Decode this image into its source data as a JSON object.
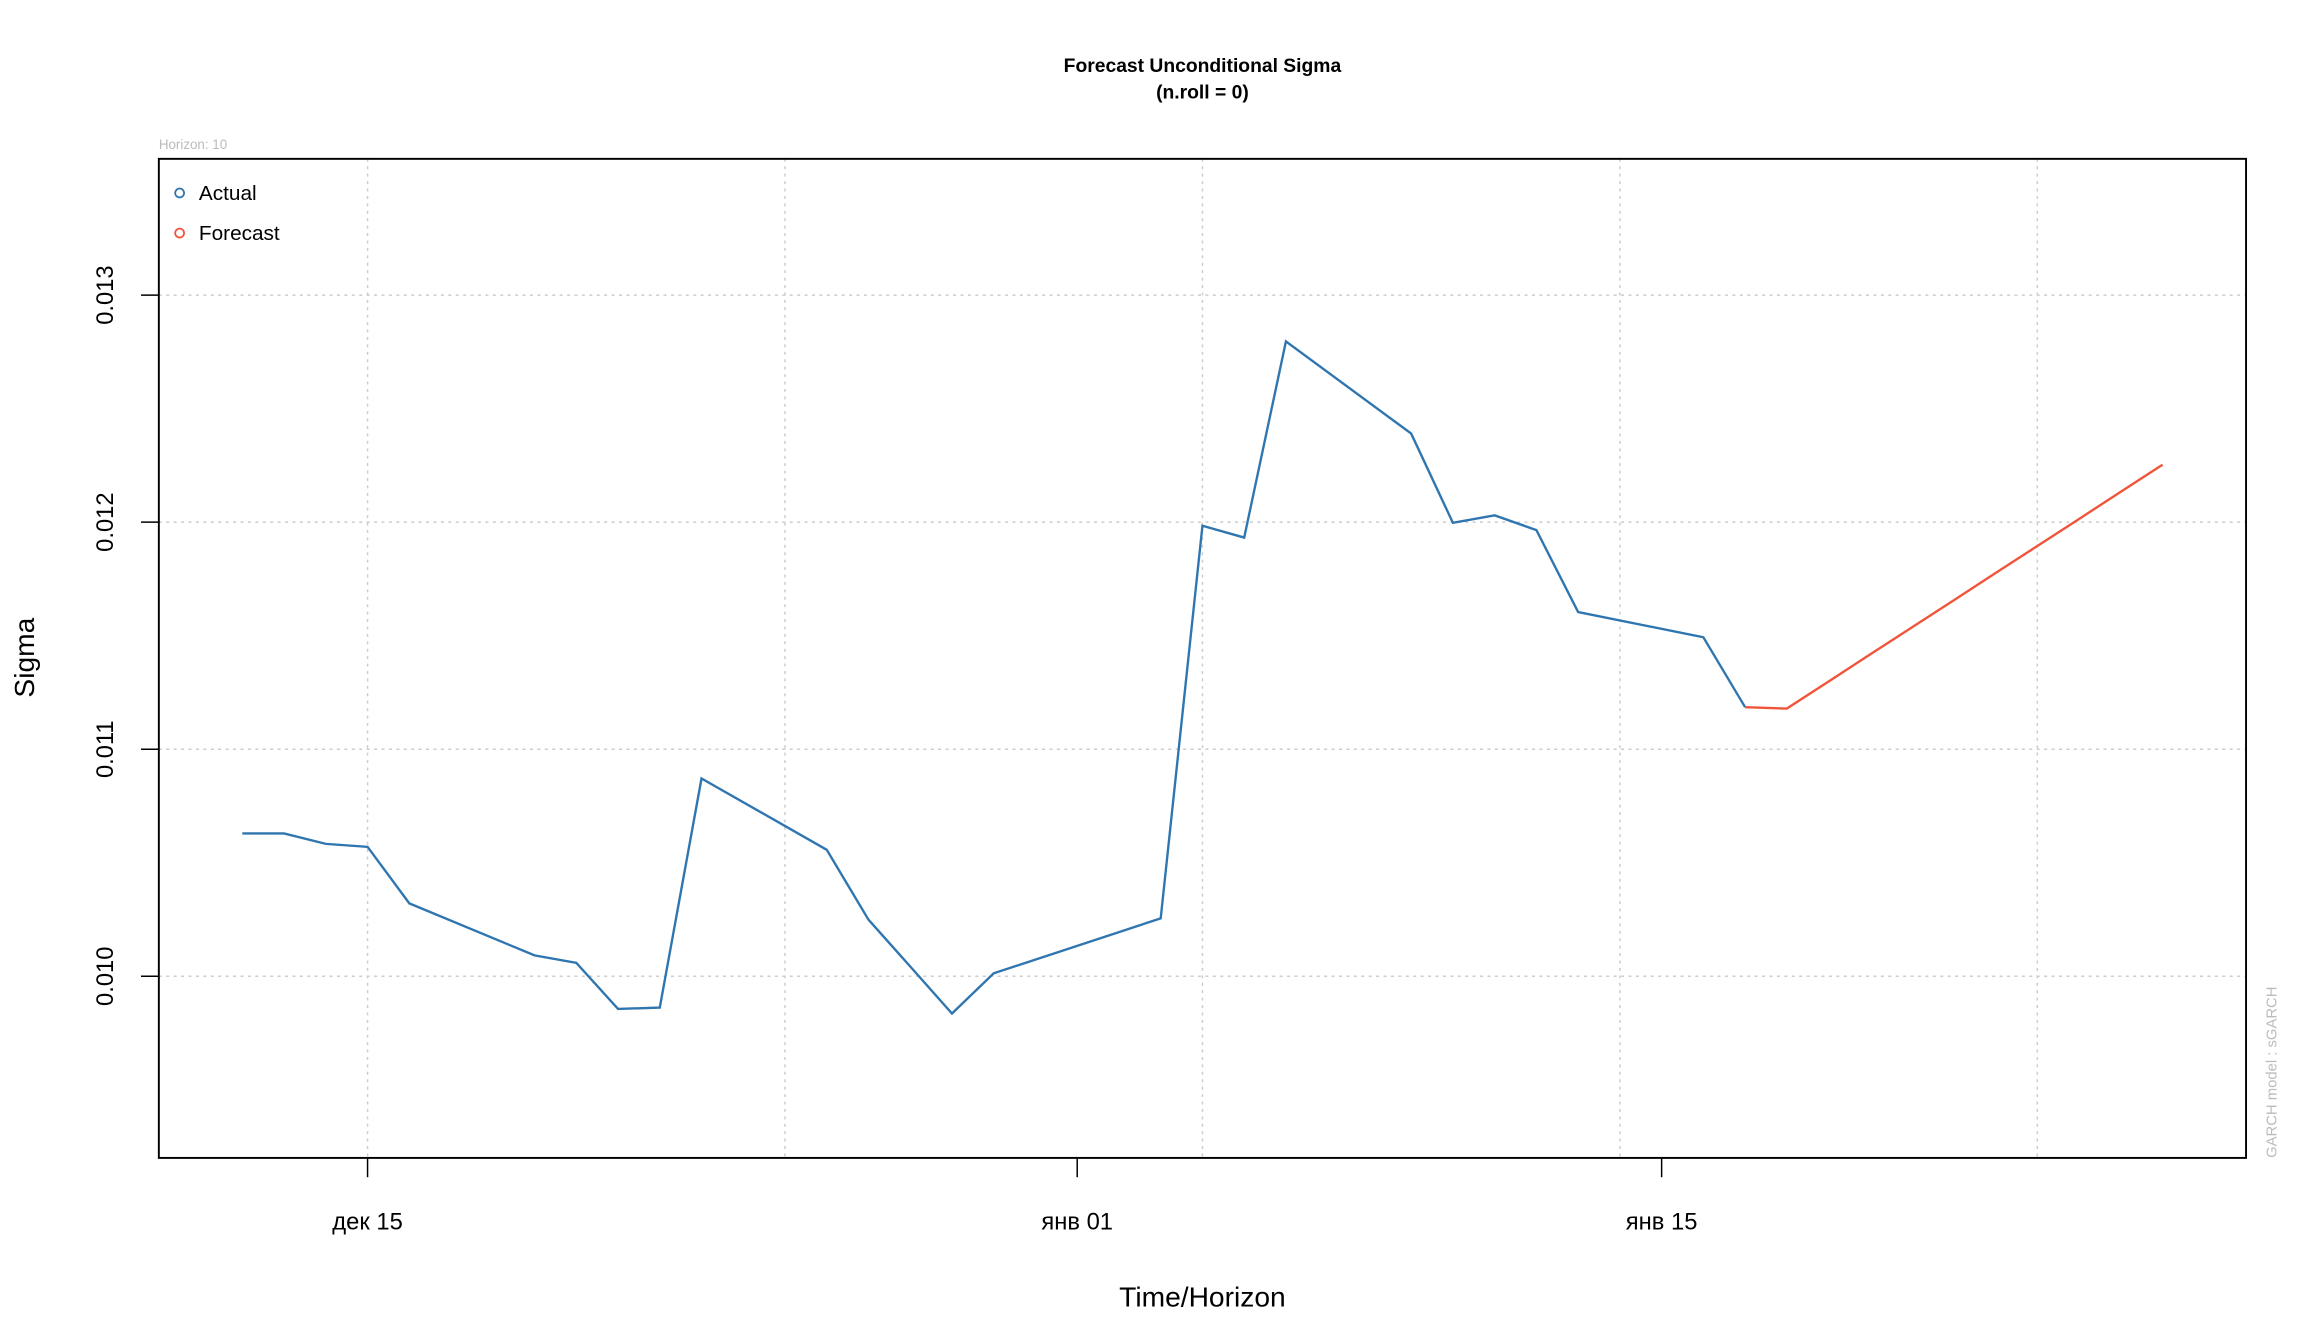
{
  "chart_data": {
    "type": "line",
    "title": "Forecast Unconditional Sigma",
    "subtitle": "(n.roll = 0)",
    "annotation": "Horizon: 10",
    "side_note": "GARCH model :  sGARCH",
    "x_label": "Time/Horizon",
    "y_label": "Sigma",
    "xlim": [
      "12-10",
      "01-29"
    ],
    "xticks": [
      {
        "value": "12-15",
        "label": "дек 15"
      },
      {
        "value": "01-01",
        "label": "янв 01"
      },
      {
        "value": "01-15",
        "label": "янв 15"
      }
    ],
    "xgrid": [
      "12-15",
      "12-25",
      "01-04",
      "01-14",
      "01-24"
    ],
    "ylim": [
      0.0092,
      0.0136
    ],
    "yticks": [
      {
        "value": 0.01,
        "label": "0.010"
      },
      {
        "value": 0.011,
        "label": "0.011"
      },
      {
        "value": 0.012,
        "label": "0.012"
      },
      {
        "value": 0.013,
        "label": "0.013"
      }
    ],
    "grid": true,
    "legend": "top-left",
    "series": [
      {
        "name": "Actual",
        "color": "#2f76b0",
        "x": [
          "12-12",
          "12-13",
          "12-14",
          "12-15",
          "12-16",
          "12-19",
          "12-20",
          "12-21",
          "12-22",
          "12-23",
          "12-26",
          "12-27",
          "12-28",
          "12-29",
          "12-30",
          "01-03",
          "01-04",
          "01-05",
          "01-06",
          "01-09",
          "01-10",
          "01-11",
          "01-12",
          "01-13",
          "01-16",
          "01-17"
        ],
        "values": [
          0.010629,
          0.010629,
          0.010583,
          0.01057,
          0.010321,
          0.010092,
          0.010059,
          0.009856,
          0.009862,
          0.010871,
          0.010557,
          0.010249,
          0.010043,
          0.009836,
          0.010013,
          0.010255,
          0.011984,
          0.011932,
          0.012796,
          0.01239,
          0.011997,
          0.01203,
          0.011965,
          0.011604,
          0.011493,
          0.011185
        ]
      },
      {
        "name": "Forecast",
        "color": "#f0553a",
        "x": [
          "01-17",
          "01-18",
          "01-19",
          "01-20",
          "01-21",
          "01-22",
          "01-23",
          "01-24",
          "01-25",
          "01-26",
          "01-27"
        ],
        "values": [
          0.011185,
          0.011179,
          0.011298,
          0.011418,
          0.011537,
          0.011656,
          0.011776,
          0.011895,
          0.012014,
          0.012134,
          0.012253
        ]
      }
    ]
  }
}
